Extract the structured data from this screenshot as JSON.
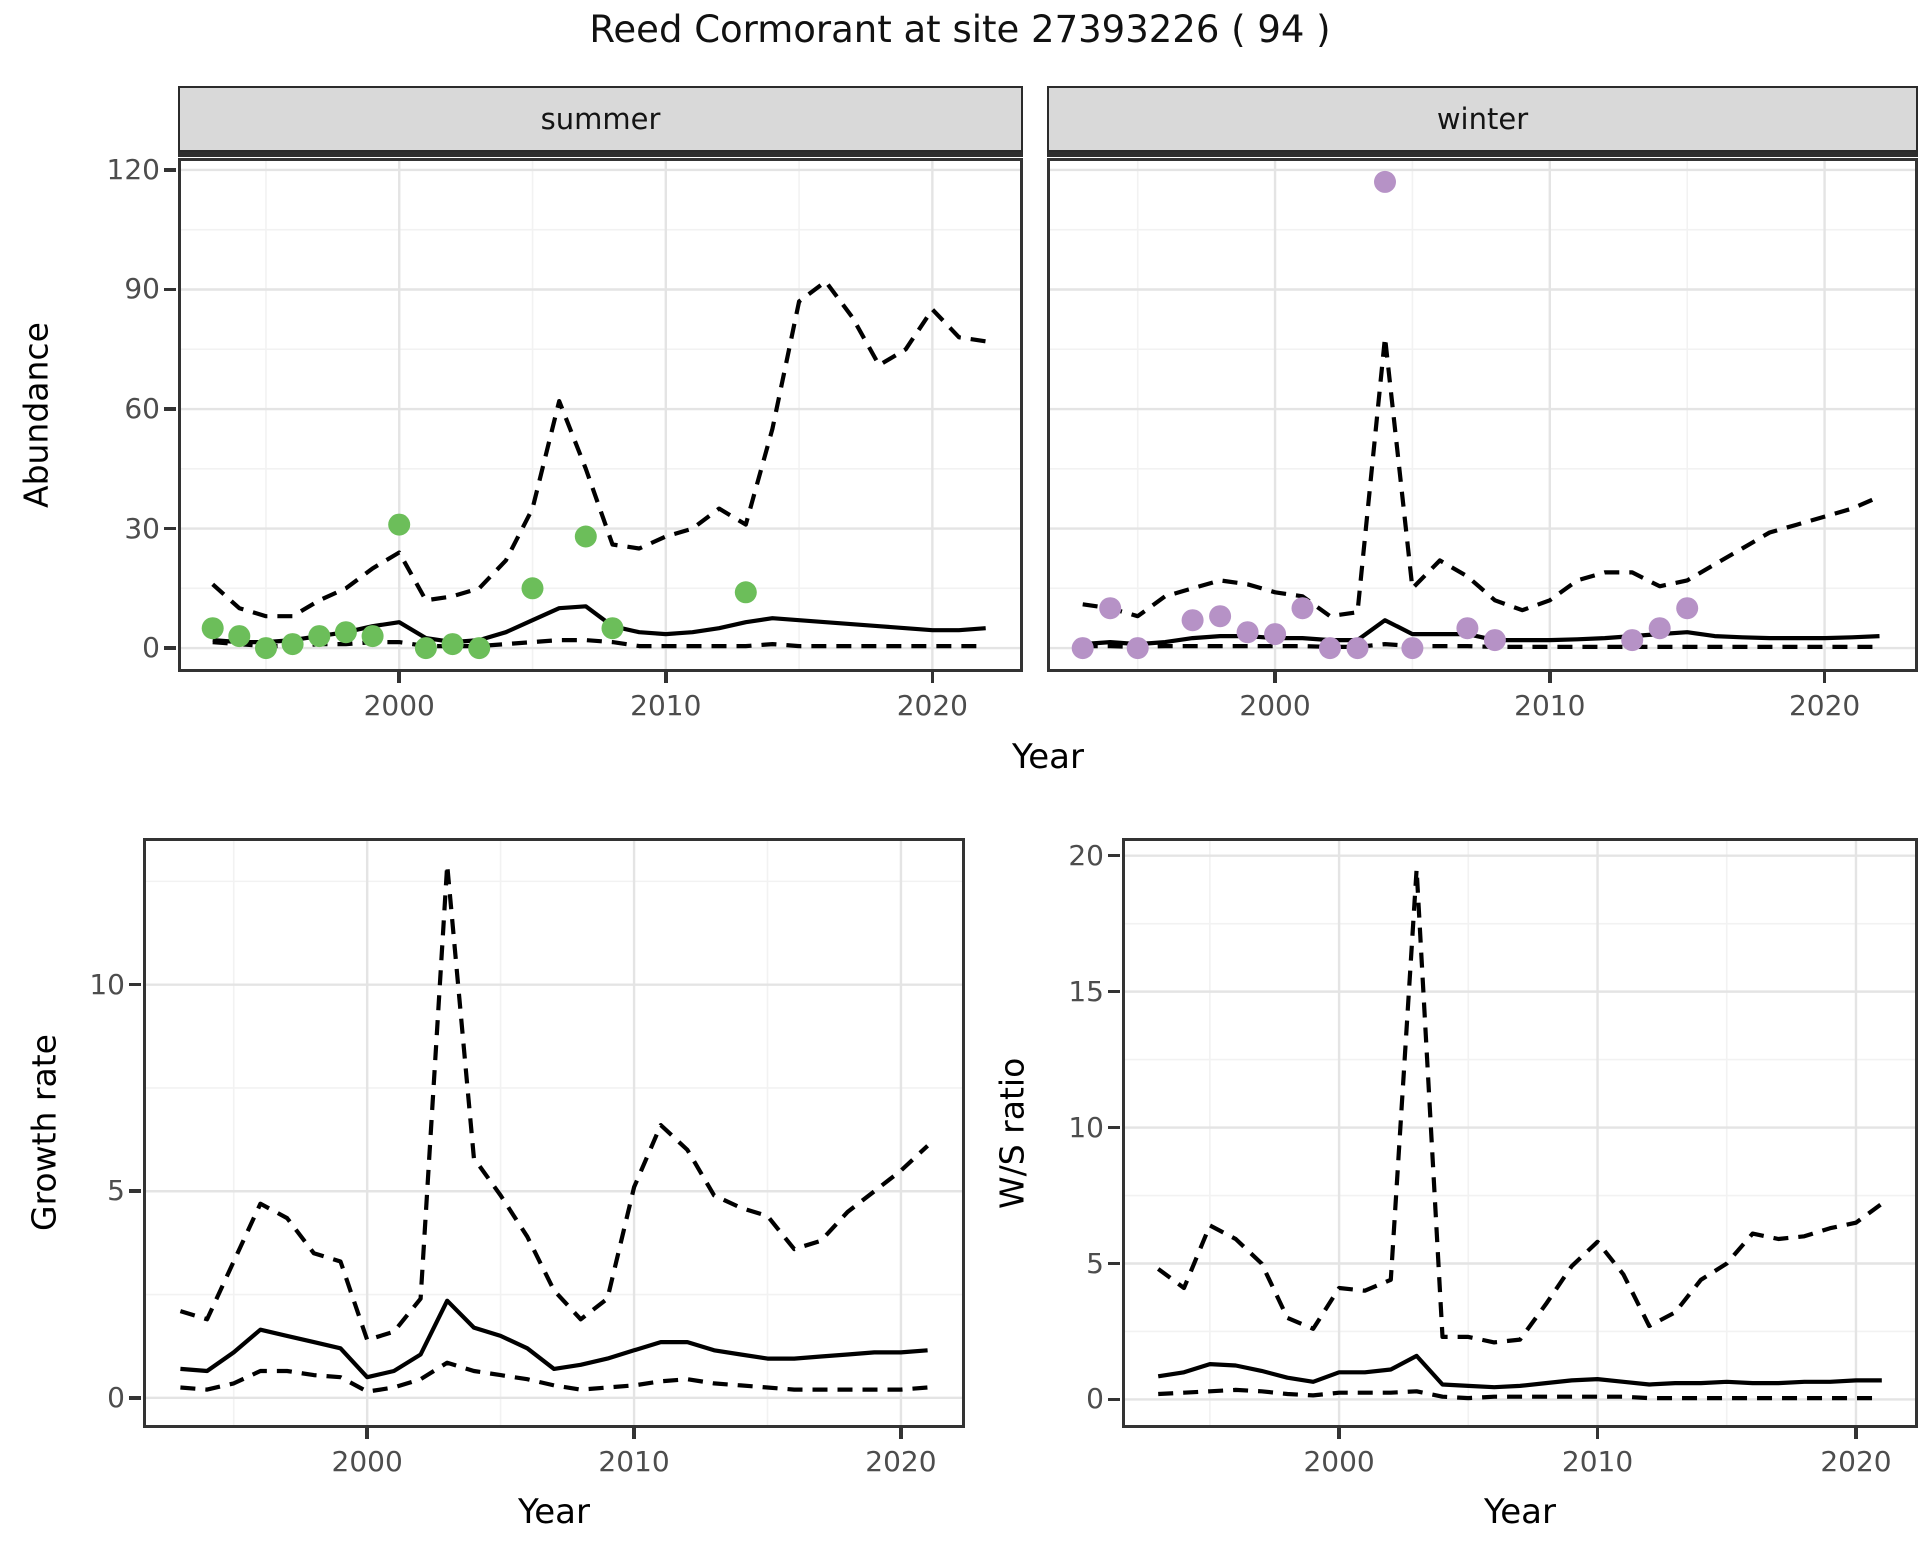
{
  "title": "Reed Cormorant at site 27393226 ( 94 )",
  "colors": {
    "summer_point": "#6cbe5a",
    "winter_point": "#b692c6",
    "line": "#000000",
    "grid_major": "#e4e4e4",
    "grid_minor": "#f2f2f2",
    "panel_border": "#333333",
    "strip_bg": "#d9d9d9",
    "tick_text": "#4d4d4d"
  },
  "chart_data": [
    {
      "type": "line",
      "facet_label": "summer",
      "xlabel": "Year",
      "ylabel": "Abundance",
      "xlim": [
        1991.7,
        2023.4
      ],
      "ylim": [
        -6,
        123
      ],
      "x_major": [
        2000,
        2010,
        2020
      ],
      "x_minor": [
        1995,
        2005,
        2015
      ],
      "y_major": [
        0,
        30,
        60,
        90,
        120
      ],
      "y_minor": [
        15,
        45,
        75,
        105
      ],
      "years": [
        1993,
        1994,
        1995,
        1996,
        1997,
        1998,
        1999,
        2000,
        2001,
        2002,
        2003,
        2004,
        2005,
        2006,
        2007,
        2008,
        2009,
        2010,
        2011,
        2012,
        2013,
        2014,
        2015,
        2016,
        2017,
        2018,
        2019,
        2020,
        2021,
        2022
      ],
      "series": [
        {
          "name": "median",
          "style": "solid",
          "values": [
            2,
            1.5,
            1.5,
            2,
            3,
            4,
            5.5,
            6.5,
            2.5,
            1.5,
            2,
            4,
            7,
            10,
            10.5,
            5.5,
            4,
            3.5,
            4,
            5,
            6.5,
            7.5,
            7,
            6.5,
            6,
            5.5,
            5,
            4.5,
            4.5,
            5
          ]
        },
        {
          "name": "upper_ci",
          "style": "dashed",
          "values": [
            16,
            10,
            8,
            8,
            12,
            15,
            20,
            24,
            12,
            13,
            15,
            22,
            35,
            62,
            45,
            26,
            25,
            28,
            30,
            35,
            31,
            55,
            87,
            92,
            83,
            71,
            75,
            85,
            78,
            77
          ]
        },
        {
          "name": "lower_ci",
          "style": "dashed",
          "values": [
            1.5,
            1,
            0.5,
            0.5,
            1,
            1,
            1.5,
            1.5,
            0.5,
            0.5,
            0.5,
            1,
            1.5,
            2,
            2,
            1.5,
            0.5,
            0.5,
            0.5,
            0.5,
            0.5,
            1,
            0.5,
            0.5,
            0.5,
            0.5,
            0.5,
            0.5,
            0.5,
            0.5
          ]
        }
      ],
      "points": {
        "color_key": "summer_point",
        "years": [
          1993,
          1994,
          1995,
          1996,
          1997,
          1998,
          1999,
          2000,
          2001,
          2002,
          2003,
          2005,
          2007,
          2008,
          2013
        ],
        "values": [
          5,
          3,
          0,
          1,
          3,
          4,
          3,
          31,
          0,
          1,
          0,
          15,
          28,
          5,
          14
        ]
      }
    },
    {
      "type": "line",
      "facet_label": "winter",
      "xlabel": "Year",
      "ylabel": "Abundance",
      "xlim": [
        1991.7,
        2023.4
      ],
      "ylim": [
        -6,
        123
      ],
      "x_major": [
        2000,
        2010,
        2020
      ],
      "x_minor": [
        1995,
        2005,
        2015
      ],
      "y_major": [
        0,
        30,
        60,
        90,
        120
      ],
      "y_minor": [
        15,
        45,
        75,
        105
      ],
      "years": [
        1993,
        1994,
        1995,
        1996,
        1997,
        1998,
        1999,
        2000,
        2001,
        2002,
        2003,
        2004,
        2005,
        2006,
        2007,
        2008,
        2009,
        2010,
        2011,
        2012,
        2013,
        2014,
        2015,
        2016,
        2017,
        2018,
        2019,
        2020,
        2021,
        2022
      ],
      "series": [
        {
          "name": "median",
          "style": "solid",
          "values": [
            1,
            1.5,
            1,
            1.5,
            2.5,
            3,
            3,
            2.5,
            2.5,
            2,
            2,
            7,
            3.5,
            3.5,
            3.5,
            2,
            2,
            2,
            2.2,
            2.5,
            3,
            3.5,
            4,
            3,
            2.7,
            2.5,
            2.5,
            2.5,
            2.7,
            3
          ]
        },
        {
          "name": "upper_ci",
          "style": "dashed",
          "values": [
            11,
            10,
            8,
            13,
            15,
            17,
            16,
            14,
            13,
            8,
            9,
            78,
            15,
            22,
            18,
            12,
            9.5,
            12,
            17,
            19,
            19,
            15.5,
            17,
            21,
            25,
            29,
            31,
            33,
            35,
            38
          ]
        },
        {
          "name": "lower_ci",
          "style": "dashed",
          "values": [
            0.5,
            0.5,
            0.3,
            0.5,
            0.5,
            0.5,
            0.5,
            0.5,
            0.5,
            0.3,
            0.3,
            1,
            0.5,
            0.5,
            0.5,
            0.3,
            0.3,
            0.3,
            0.3,
            0.3,
            0.3,
            0.3,
            0.3,
            0.3,
            0.3,
            0.3,
            0.3,
            0.3,
            0.3,
            0.3
          ]
        }
      ],
      "points": {
        "color_key": "winter_point",
        "years": [
          1993,
          1994,
          1995,
          1997,
          1998,
          1999,
          2000,
          2001,
          2002,
          2003,
          2004,
          2005,
          2007,
          2008,
          2013,
          2014,
          2015
        ],
        "values": [
          0,
          10,
          0,
          7,
          8,
          4,
          3.5,
          10,
          0,
          0,
          117,
          0,
          5,
          2,
          2,
          5,
          10
        ]
      }
    },
    {
      "type": "line",
      "facet_label": "",
      "xlabel": "Year",
      "ylabel": "Growth rate",
      "xlim": [
        1991.6,
        2022.4
      ],
      "ylim": [
        -0.73,
        13.55
      ],
      "x_major": [
        2000,
        2010,
        2020
      ],
      "x_minor": [
        1995,
        2005,
        2015
      ],
      "y_major": [
        0,
        5,
        10
      ],
      "y_minor": [
        2.5,
        7.5,
        12.5
      ],
      "years": [
        1993,
        1994,
        1995,
        1996,
        1997,
        1998,
        1999,
        2000,
        2001,
        2002,
        2003,
        2004,
        2005,
        2006,
        2007,
        2008,
        2009,
        2010,
        2011,
        2012,
        2013,
        2014,
        2015,
        2016,
        2017,
        2018,
        2019,
        2020,
        2021
      ],
      "series": [
        {
          "name": "median",
          "style": "solid",
          "values": [
            0.7,
            0.65,
            1.1,
            1.65,
            1.5,
            1.35,
            1.2,
            0.5,
            0.65,
            1.05,
            2.35,
            1.7,
            1.5,
            1.2,
            0.7,
            0.8,
            0.95,
            1.15,
            1.35,
            1.35,
            1.15,
            1.05,
            0.95,
            0.95,
            1.0,
            1.05,
            1.1,
            1.1,
            1.15
          ]
        },
        {
          "name": "upper_ci",
          "style": "dashed",
          "values": [
            2.1,
            1.9,
            3.3,
            4.7,
            4.35,
            3.5,
            3.3,
            1.4,
            1.6,
            2.4,
            12.9,
            5.8,
            4.9,
            3.9,
            2.6,
            1.9,
            2.4,
            5.1,
            6.6,
            6.0,
            4.9,
            4.6,
            4.4,
            3.6,
            3.8,
            4.5,
            5.0,
            5.5,
            6.1
          ]
        },
        {
          "name": "lower_ci",
          "style": "dashed",
          "values": [
            0.25,
            0.2,
            0.35,
            0.65,
            0.65,
            0.55,
            0.5,
            0.15,
            0.25,
            0.45,
            0.85,
            0.65,
            0.55,
            0.45,
            0.3,
            0.2,
            0.25,
            0.3,
            0.4,
            0.45,
            0.35,
            0.3,
            0.25,
            0.2,
            0.2,
            0.2,
            0.2,
            0.2,
            0.25
          ]
        }
      ],
      "points": null
    },
    {
      "type": "line",
      "facet_label": "",
      "xlabel": "Year",
      "ylabel": "W/S ratio",
      "xlim": [
        1991.6,
        2022.4
      ],
      "ylim": [
        -1.05,
        20.65
      ],
      "x_major": [
        2000,
        2010,
        2020
      ],
      "x_minor": [
        1995,
        2005,
        2015
      ],
      "y_major": [
        0,
        5,
        10,
        15,
        20
      ],
      "y_minor": [
        2.5,
        7.5,
        12.5,
        17.5
      ],
      "years": [
        1993,
        1994,
        1995,
        1996,
        1997,
        1998,
        1999,
        2000,
        2001,
        2002,
        2003,
        2004,
        2005,
        2006,
        2007,
        2008,
        2009,
        2010,
        2011,
        2012,
        2013,
        2014,
        2015,
        2016,
        2017,
        2018,
        2019,
        2020,
        2021
      ],
      "series": [
        {
          "name": "median",
          "style": "solid",
          "values": [
            0.85,
            1.0,
            1.3,
            1.25,
            1.05,
            0.8,
            0.65,
            1.0,
            1.0,
            1.1,
            1.6,
            0.55,
            0.5,
            0.45,
            0.5,
            0.6,
            0.7,
            0.75,
            0.65,
            0.55,
            0.6,
            0.6,
            0.65,
            0.6,
            0.6,
            0.65,
            0.65,
            0.7,
            0.7
          ]
        },
        {
          "name": "upper_ci",
          "style": "dashed",
          "values": [
            4.8,
            4.1,
            6.4,
            5.9,
            5.0,
            3.0,
            2.6,
            4.1,
            4.0,
            4.4,
            19.5,
            2.3,
            2.3,
            2.1,
            2.2,
            3.5,
            4.9,
            5.8,
            4.6,
            2.7,
            3.2,
            4.4,
            5.0,
            6.1,
            5.9,
            6.0,
            6.3,
            6.5,
            7.2
          ]
        },
        {
          "name": "lower_ci",
          "style": "dashed",
          "values": [
            0.2,
            0.25,
            0.3,
            0.35,
            0.3,
            0.2,
            0.15,
            0.25,
            0.25,
            0.25,
            0.3,
            0.1,
            0.05,
            0.1,
            0.1,
            0.1,
            0.1,
            0.1,
            0.1,
            0.05,
            0.05,
            0.05,
            0.05,
            0.05,
            0.05,
            0.05,
            0.05,
            0.05,
            0.05
          ]
        }
      ],
      "points": null
    }
  ]
}
